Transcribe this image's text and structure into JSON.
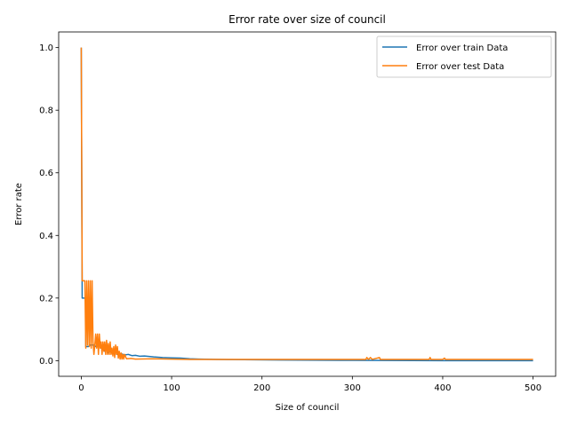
{
  "chart_data": {
    "type": "line",
    "title": "Error rate over size of council",
    "xlabel": "Size of council",
    "ylabel": "Error rate",
    "xlim": [
      -25,
      525
    ],
    "ylim": [
      -0.05,
      1.05
    ],
    "xticks": [
      0,
      100,
      200,
      300,
      400,
      500
    ],
    "yticks": [
      0.0,
      0.2,
      0.4,
      0.6,
      0.8,
      1.0
    ],
    "ytick_labels": [
      "0.0",
      "0.2",
      "0.4",
      "0.6",
      "0.8",
      "1.0"
    ],
    "grid": false,
    "legend_position": "top-right",
    "series": [
      {
        "name": "Error over train Data",
        "color": "#1f77b4",
        "points": [
          [
            0,
            1.0
          ],
          [
            1,
            0.2
          ],
          [
            5,
            0.2
          ],
          [
            5,
            0.045
          ],
          [
            8,
            0.045
          ],
          [
            10,
            0.05
          ],
          [
            14,
            0.05
          ],
          [
            16,
            0.045
          ],
          [
            20,
            0.05
          ],
          [
            22,
            0.04
          ],
          [
            24,
            0.045
          ],
          [
            26,
            0.03
          ],
          [
            28,
            0.035
          ],
          [
            30,
            0.025
          ],
          [
            32,
            0.03
          ],
          [
            34,
            0.025
          ],
          [
            38,
            0.028
          ],
          [
            40,
            0.02
          ],
          [
            44,
            0.022
          ],
          [
            48,
            0.018
          ],
          [
            52,
            0.02
          ],
          [
            56,
            0.016
          ],
          [
            60,
            0.017
          ],
          [
            65,
            0.014
          ],
          [
            70,
            0.015
          ],
          [
            80,
            0.012
          ],
          [
            90,
            0.01
          ],
          [
            100,
            0.009
          ],
          [
            110,
            0.008
          ],
          [
            120,
            0.006
          ],
          [
            130,
            0.005
          ],
          [
            150,
            0.004
          ],
          [
            180,
            0.003
          ],
          [
            220,
            0.002
          ],
          [
            300,
            0.001
          ],
          [
            400,
            0.0
          ],
          [
            500,
            0.0
          ]
        ]
      },
      {
        "name": "Error over test Data",
        "color": "#ff7f0e",
        "points": [
          [
            0,
            1.0
          ],
          [
            1,
            0.255
          ],
          [
            4,
            0.255
          ],
          [
            5,
            0.04
          ],
          [
            6,
            0.255
          ],
          [
            7,
            0.05
          ],
          [
            8,
            0.255
          ],
          [
            9,
            0.045
          ],
          [
            10,
            0.255
          ],
          [
            11,
            0.04
          ],
          [
            12,
            0.255
          ],
          [
            13,
            0.06
          ],
          [
            14,
            0.02
          ],
          [
            15,
            0.05
          ],
          [
            16,
            0.085
          ],
          [
            17,
            0.04
          ],
          [
            18,
            0.085
          ],
          [
            19,
            0.02
          ],
          [
            20,
            0.085
          ],
          [
            21,
            0.04
          ],
          [
            22,
            0.06
          ],
          [
            23,
            0.02
          ],
          [
            24,
            0.06
          ],
          [
            25,
            0.03
          ],
          [
            26,
            0.06
          ],
          [
            27,
            0.02
          ],
          [
            28,
            0.065
          ],
          [
            29,
            0.02
          ],
          [
            30,
            0.055
          ],
          [
            31,
            0.02
          ],
          [
            32,
            0.06
          ],
          [
            33,
            0.02
          ],
          [
            34,
            0.04
          ],
          [
            35,
            0.015
          ],
          [
            36,
            0.045
          ],
          [
            37,
            0.01
          ],
          [
            38,
            0.05
          ],
          [
            39,
            0.02
          ],
          [
            40,
            0.045
          ],
          [
            41,
            0.008
          ],
          [
            42,
            0.03
          ],
          [
            43,
            0.005
          ],
          [
            44,
            0.025
          ],
          [
            45,
            0.005
          ],
          [
            46,
            0.02
          ],
          [
            47,
            0.005
          ],
          [
            48,
            0.02
          ],
          [
            50,
            0.006
          ],
          [
            55,
            0.007
          ],
          [
            60,
            0.005
          ],
          [
            80,
            0.006
          ],
          [
            100,
            0.005
          ],
          [
            120,
            0.004
          ],
          [
            140,
            0.004
          ],
          [
            200,
            0.004
          ],
          [
            300,
            0.004
          ],
          [
            315,
            0.004
          ],
          [
            316,
            0.01
          ],
          [
            318,
            0.004
          ],
          [
            320,
            0.01
          ],
          [
            322,
            0.004
          ],
          [
            330,
            0.01
          ],
          [
            331,
            0.004
          ],
          [
            385,
            0.004
          ],
          [
            386,
            0.01
          ],
          [
            387,
            0.004
          ],
          [
            390,
            0.004
          ],
          [
            400,
            0.004
          ],
          [
            402,
            0.008
          ],
          [
            403,
            0.004
          ],
          [
            500,
            0.004
          ]
        ]
      }
    ]
  }
}
